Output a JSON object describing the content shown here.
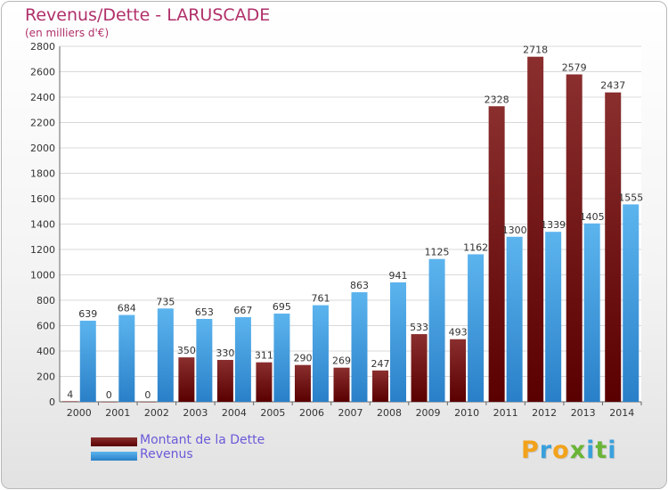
{
  "chart_data": {
    "type": "bar",
    "title": "Revenus/Dette - LARUSCADE",
    "subtitle": "(en milliers d'€)",
    "categories": [
      "2000",
      "2001",
      "2002",
      "2003",
      "2004",
      "2005",
      "2006",
      "2007",
      "2008",
      "2009",
      "2010",
      "2011",
      "2012",
      "2013",
      "2014"
    ],
    "series": [
      {
        "name": "Montant de la Dette",
        "color": "#7a1010",
        "values": [
          4,
          0,
          0,
          350,
          330,
          311,
          290,
          269,
          247,
          533,
          493,
          2328,
          2718,
          2579,
          2437
        ]
      },
      {
        "name": "Revenus",
        "color": "#3a9ce0",
        "values": [
          639,
          684,
          735,
          653,
          667,
          695,
          761,
          863,
          941,
          1125,
          1162,
          1300,
          1339,
          1405,
          1555
        ]
      }
    ],
    "yticks": [
      0,
      200,
      400,
      600,
      800,
      1000,
      1200,
      1400,
      1600,
      1800,
      2000,
      2200,
      2400,
      2600,
      2800
    ],
    "ylim": [
      0,
      2800
    ],
    "grid": true,
    "legend_position": "bottom-left"
  },
  "logo": {
    "letters": [
      "P",
      "r",
      "o",
      "x",
      "i",
      "t",
      "i"
    ],
    "colors": [
      "#f2a21b",
      "#3aa0dc",
      "#f2a21b",
      "#6ab437",
      "#3aa0dc",
      "#6ab437",
      "#3aa0dc"
    ]
  }
}
